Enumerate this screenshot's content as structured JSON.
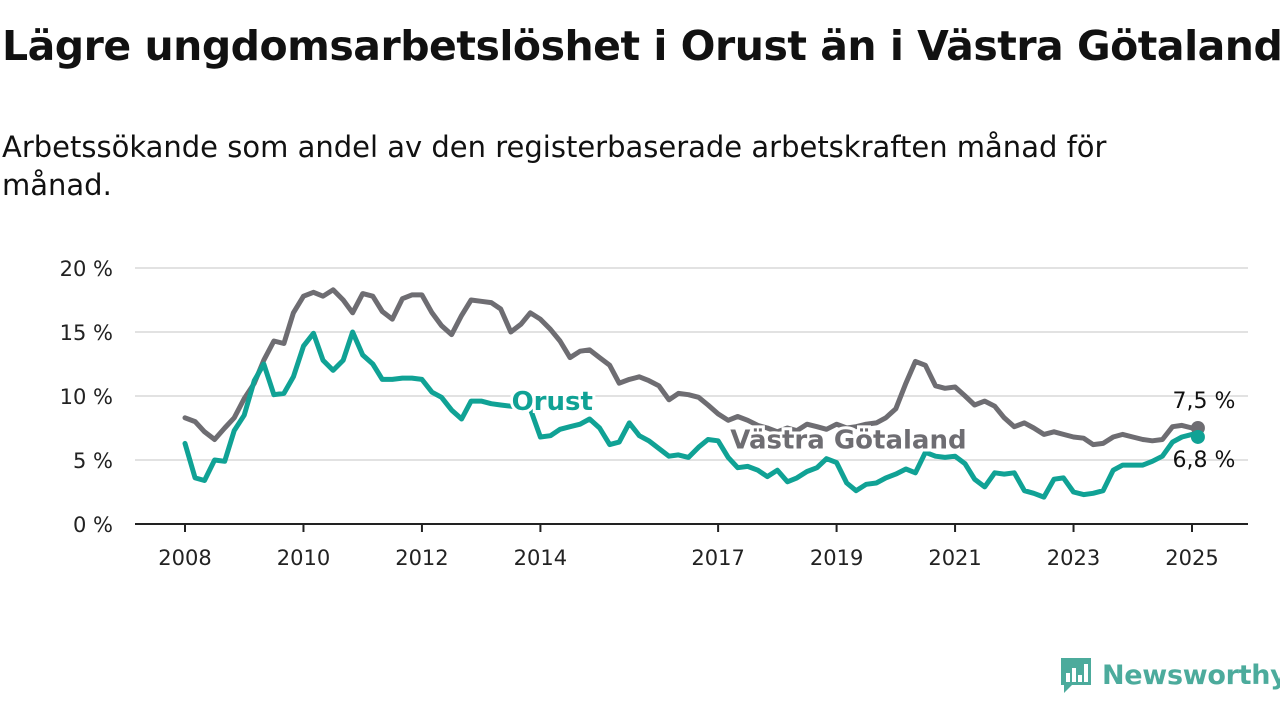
{
  "title": "Lägre ungdomsarbetslöshet i Orust än i Västra Götaland",
  "subtitle": "Arbetssökande som andel av den registerbaserade arbetskraften månad för månad.",
  "brand": {
    "name": "Newsworthy",
    "icon": "newsworthy-logo-icon",
    "color": "#4cab9c"
  },
  "chart_data": {
    "type": "line",
    "title": "Lägre ungdomsarbetslöshet i Orust än i Västra Götaland",
    "xlabel": "",
    "ylabel": "",
    "ylim": [
      0,
      20
    ],
    "xlim": [
      2008,
      2025.5
    ],
    "grid": true,
    "y_ticks": [
      0,
      5,
      10,
      15,
      20
    ],
    "y_tick_labels": [
      "0 %",
      "5 %",
      "10 %",
      "15 %",
      "20 %"
    ],
    "x_ticks": [
      2008,
      2010,
      2012,
      2014,
      2017,
      2019,
      2021,
      2023,
      2025
    ],
    "x_tick_labels": [
      "2008",
      "2010",
      "2012",
      "2014",
      "2017",
      "2019",
      "2021",
      "2023",
      "2025"
    ],
    "series": [
      {
        "name": "Västra Götaland",
        "color": "#6e6d72",
        "end_label": "7,5 %",
        "x": [
          2008.0,
          2008.17,
          2008.33,
          2008.5,
          2008.67,
          2008.83,
          2009.0,
          2009.17,
          2009.33,
          2009.5,
          2009.67,
          2009.83,
          2010.0,
          2010.17,
          2010.33,
          2010.5,
          2010.67,
          2010.83,
          2011.0,
          2011.17,
          2011.33,
          2011.5,
          2011.67,
          2011.83,
          2012.0,
          2012.17,
          2012.33,
          2012.5,
          2012.67,
          2012.83,
          2013.0,
          2013.17,
          2013.33,
          2013.5,
          2013.67,
          2013.83,
          2014.0,
          2014.17,
          2014.33,
          2014.5,
          2014.67,
          2014.83,
          2015.0,
          2015.17,
          2015.33,
          2015.5,
          2015.67,
          2015.83,
          2016.0,
          2016.17,
          2016.33,
          2016.5,
          2016.67,
          2016.83,
          2017.0,
          2017.17,
          2017.33,
          2017.5,
          2017.67,
          2017.83,
          2018.0,
          2018.17,
          2018.33,
          2018.5,
          2018.67,
          2018.83,
          2019.0,
          2019.17,
          2019.33,
          2019.5,
          2019.67,
          2019.83,
          2020.0,
          2020.17,
          2020.33,
          2020.5,
          2020.67,
          2020.83,
          2021.0,
          2021.17,
          2021.33,
          2021.5,
          2021.67,
          2021.83,
          2022.0,
          2022.17,
          2022.33,
          2022.5,
          2022.67,
          2022.83,
          2023.0,
          2023.17,
          2023.33,
          2023.5,
          2023.67,
          2023.83,
          2024.0,
          2024.17,
          2024.33,
          2024.5,
          2024.67,
          2024.83,
          2025.0,
          2025.1
        ],
        "values": [
          8.3,
          8.0,
          7.2,
          6.6,
          7.5,
          8.3,
          9.8,
          11.0,
          12.8,
          14.3,
          14.1,
          16.5,
          17.8,
          18.1,
          17.8,
          18.3,
          17.5,
          16.5,
          18.0,
          17.8,
          16.6,
          16.0,
          17.6,
          17.9,
          17.9,
          16.5,
          15.5,
          14.8,
          16.3,
          17.5,
          17.4,
          17.3,
          16.8,
          15.0,
          15.6,
          16.5,
          16.0,
          15.2,
          14.3,
          13.0,
          13.5,
          13.6,
          13.0,
          12.4,
          11.0,
          11.3,
          11.5,
          11.2,
          10.8,
          9.7,
          10.2,
          10.1,
          9.9,
          9.3,
          8.6,
          8.1,
          8.4,
          8.1,
          7.7,
          7.5,
          7.2,
          7.5,
          7.3,
          7.8,
          7.6,
          7.4,
          7.8,
          7.5,
          7.6,
          7.8,
          7.9,
          8.3,
          9.0,
          11.0,
          12.7,
          12.4,
          10.8,
          10.6,
          10.7,
          10.0,
          9.3,
          9.6,
          9.2,
          8.3,
          7.6,
          7.9,
          7.5,
          7.0,
          7.2,
          7.0,
          6.8,
          6.7,
          6.2,
          6.3,
          6.8,
          7.0,
          6.8,
          6.6,
          6.5,
          6.6,
          7.6,
          7.7,
          7.5,
          7.5
        ]
      },
      {
        "name": "Orust",
        "color": "#10a295",
        "end_label": "6,8 %",
        "x": [
          2008.0,
          2008.17,
          2008.33,
          2008.5,
          2008.67,
          2008.83,
          2009.0,
          2009.17,
          2009.33,
          2009.5,
          2009.67,
          2009.83,
          2010.0,
          2010.17,
          2010.33,
          2010.5,
          2010.67,
          2010.83,
          2011.0,
          2011.17,
          2011.33,
          2011.5,
          2011.67,
          2011.83,
          2012.0,
          2012.17,
          2012.33,
          2012.5,
          2012.67,
          2012.83,
          2013.0,
          2013.17,
          2013.33,
          2013.5,
          2013.67,
          2013.83,
          2014.0,
          2014.17,
          2014.33,
          2014.5,
          2014.67,
          2014.83,
          2015.0,
          2015.17,
          2015.33,
          2015.5,
          2015.67,
          2015.83,
          2016.0,
          2016.17,
          2016.33,
          2016.5,
          2016.67,
          2016.83,
          2017.0,
          2017.17,
          2017.33,
          2017.5,
          2017.67,
          2017.83,
          2018.0,
          2018.17,
          2018.33,
          2018.5,
          2018.67,
          2018.83,
          2019.0,
          2019.17,
          2019.33,
          2019.5,
          2019.67,
          2019.83,
          2020.0,
          2020.17,
          2020.33,
          2020.5,
          2020.67,
          2020.83,
          2021.0,
          2021.17,
          2021.33,
          2021.5,
          2021.67,
          2021.83,
          2022.0,
          2022.17,
          2022.33,
          2022.5,
          2022.67,
          2022.83,
          2023.0,
          2023.17,
          2023.33,
          2023.5,
          2023.67,
          2023.83,
          2024.0,
          2024.17,
          2024.33,
          2024.5,
          2024.67,
          2024.83,
          2025.0,
          2025.1
        ],
        "values": [
          6.3,
          3.6,
          3.4,
          5.0,
          4.9,
          7.3,
          8.5,
          11.2,
          12.5,
          10.1,
          10.2,
          11.5,
          13.9,
          14.9,
          12.8,
          12.0,
          12.8,
          15.0,
          13.2,
          12.5,
          11.3,
          11.3,
          11.4,
          11.4,
          11.3,
          10.3,
          9.9,
          8.9,
          8.2,
          9.6,
          9.6,
          9.4,
          9.3,
          9.2,
          9.1,
          9.0,
          6.8,
          6.9,
          7.4,
          7.6,
          7.8,
          8.2,
          7.5,
          6.2,
          6.4,
          7.9,
          6.9,
          6.5,
          5.9,
          5.3,
          5.4,
          5.2,
          6.0,
          6.6,
          6.5,
          5.2,
          4.4,
          4.5,
          4.2,
          3.7,
          4.2,
          3.3,
          3.6,
          4.1,
          4.4,
          5.1,
          4.8,
          3.2,
          2.6,
          3.1,
          3.2,
          3.6,
          3.9,
          4.3,
          4.0,
          5.6,
          5.3,
          5.2,
          5.3,
          4.7,
          3.5,
          2.9,
          4.0,
          3.9,
          4.0,
          2.6,
          2.4,
          2.1,
          3.5,
          3.6,
          2.5,
          2.3,
          2.4,
          2.6,
          4.2,
          4.6,
          4.6,
          4.6,
          4.9,
          5.3,
          6.4,
          6.8,
          7.0,
          6.8
        ]
      }
    ],
    "series_labels": [
      {
        "series": "Orust",
        "x": 2014.2,
        "y": 9.6
      },
      {
        "series": "Västra Götaland",
        "x": 2019.2,
        "y": 6.6
      }
    ]
  }
}
